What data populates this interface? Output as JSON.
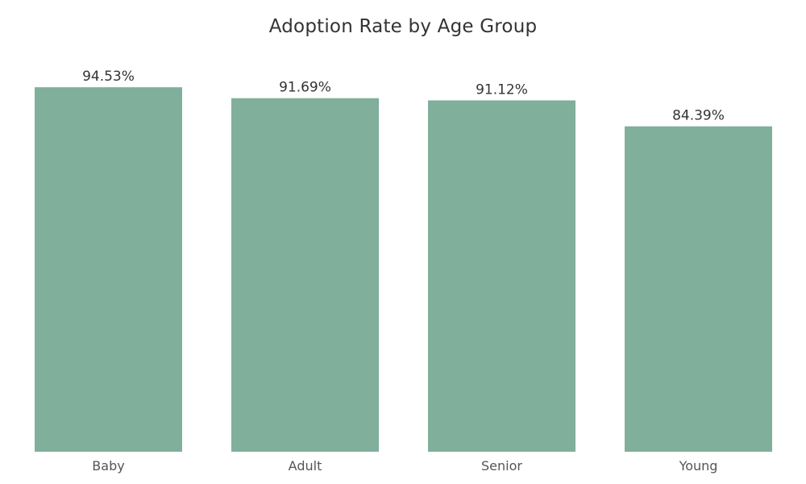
{
  "chart_data": {
    "type": "bar",
    "title": "Adoption Rate by Age Group",
    "xlabel": "",
    "ylabel": "",
    "categories": [
      "Baby",
      "Adult",
      "Senior",
      "Young"
    ],
    "values": [
      94.53,
      91.69,
      91.12,
      84.39
    ],
    "value_labels": [
      "94.53%",
      "91.69%",
      "91.12%",
      "84.39%"
    ],
    "ylim": [
      0,
      100
    ],
    "grid": false,
    "legend": "none",
    "bar_color": "#80AF9B"
  }
}
